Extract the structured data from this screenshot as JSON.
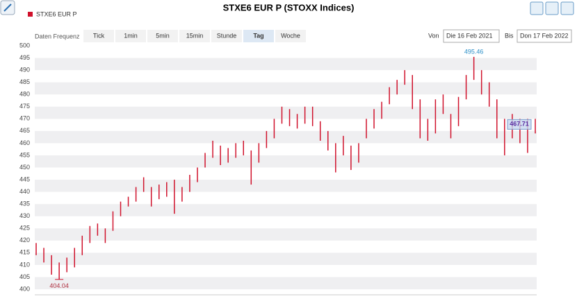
{
  "chart_data": {
    "type": "range_bar",
    "title": "STXE6 EUR P (STOXX Indices)",
    "legend": "STXE6 EUR P",
    "color": "#d0112b",
    "toolbar": {
      "label": "Daten Frequenz",
      "buttons": [
        "Tick",
        "1min",
        "5min",
        "15min",
        "Stunde",
        "Tag",
        "Woche"
      ],
      "active": 5,
      "from_label": "Von",
      "from": "Die 16 Feb 2021",
      "to_label": "Bis",
      "to": "Don 17 Feb 2022"
    },
    "ylim": [
      400,
      500
    ],
    "yticks": [
      400,
      405,
      410,
      415,
      420,
      425,
      430,
      435,
      440,
      445,
      450,
      455,
      460,
      465,
      470,
      475,
      480,
      485,
      490,
      495,
      500
    ],
    "annotations": {
      "max": 495.46,
      "min": 404.04,
      "last": 467.71
    },
    "series": [
      {
        "name": "low",
        "values": [
          414,
          411,
          406,
          404.04,
          407,
          409,
          414,
          419,
          422,
          419,
          424,
          430,
          434,
          436,
          440,
          434,
          437,
          438,
          431,
          436,
          440,
          444,
          450,
          454,
          451,
          452,
          454,
          455,
          443,
          452,
          458,
          462,
          468,
          467,
          466,
          468,
          467,
          461,
          457,
          448,
          455,
          449,
          452,
          462,
          466,
          470,
          476,
          480,
          484,
          474,
          462,
          461,
          464,
          472,
          462,
          467,
          478,
          486,
          480,
          475,
          462,
          455,
          462,
          460,
          456,
          464
        ]
      },
      {
        "name": "high",
        "values": [
          419,
          417,
          414,
          411,
          413,
          417,
          422,
          426,
          427,
          425,
          432,
          436,
          438,
          442,
          446,
          442,
          443,
          444,
          445,
          442,
          447,
          450,
          456,
          461,
          459,
          458,
          460,
          461,
          457,
          460,
          465,
          470,
          475,
          474,
          472,
          475,
          475,
          469,
          465,
          460,
          463,
          459,
          460,
          470,
          474,
          477,
          483,
          486,
          490,
          488,
          478,
          470,
          478,
          480,
          472,
          479,
          488,
          495.46,
          490,
          485,
          478,
          470,
          472,
          470,
          470,
          470
        ]
      }
    ]
  }
}
